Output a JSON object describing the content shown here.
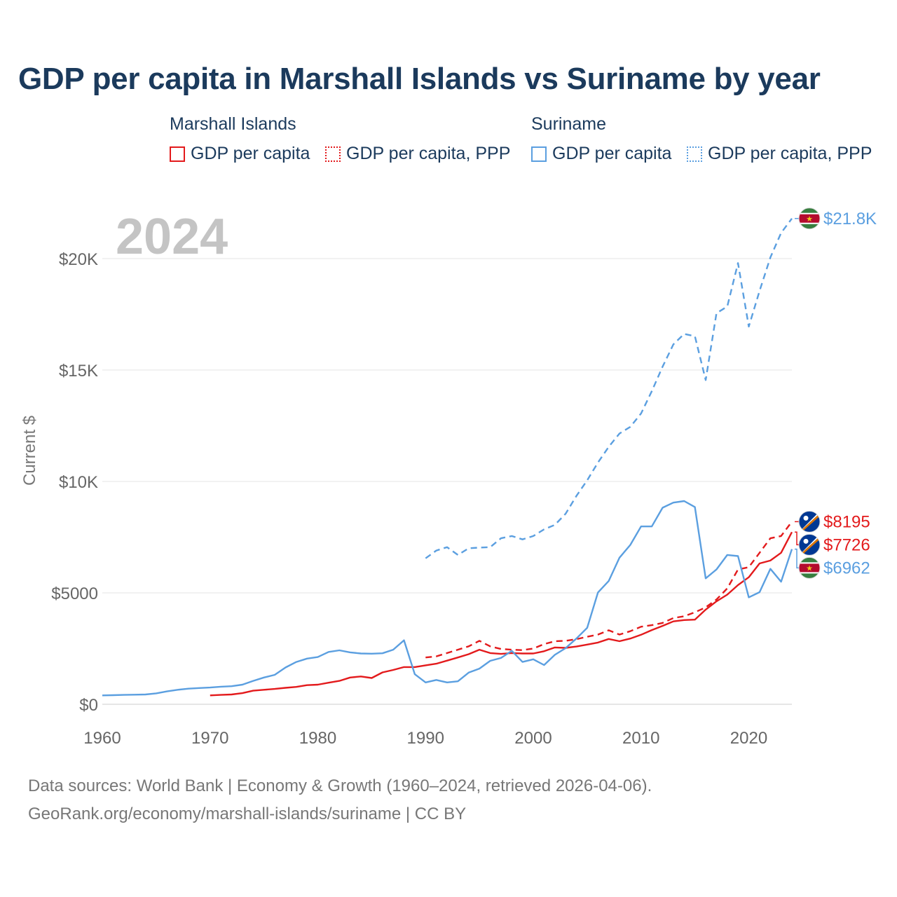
{
  "title": "GDP per capita in Marshall Islands vs Suriname by year",
  "legend": {
    "groups": [
      {
        "name": "Marshall Islands",
        "items": [
          "GDP per capita",
          "GDP per capita, PPP"
        ]
      },
      {
        "name": "Suriname",
        "items": [
          "GDP per capita",
          "GDP per capita, PPP"
        ]
      }
    ]
  },
  "colors": {
    "marshall": "#e31a1c",
    "suriname": "#5b9fe0",
    "title": "#1b3a5c",
    "grid": "#e6e6e6",
    "axis_text": "#666666",
    "year_watermark": "#c4c4c4"
  },
  "source_lines": [
    "Data sources: World Bank | Economy & Growth (1960–2024, retrieved 2026-04-06).",
    "GeoRank.org/economy/marshall-islands/suriname | CC BY"
  ],
  "chart_data": {
    "type": "line",
    "year_label": "2024",
    "ylabel": "Current $",
    "xlabel": "",
    "xlim": [
      1960,
      2024
    ],
    "ylim": [
      0,
      22000
    ],
    "x_ticks": [
      1960,
      1970,
      1980,
      1990,
      2000,
      2010,
      2020
    ],
    "y_ticks": [
      {
        "value": 0,
        "label": "$0"
      },
      {
        "value": 5000,
        "label": "$5000"
      },
      {
        "value": 10000,
        "label": "$10K"
      },
      {
        "value": 15000,
        "label": "$15K"
      },
      {
        "value": 20000,
        "label": "$20K"
      }
    ],
    "series": [
      {
        "name": "Marshall Islands GDP per capita",
        "country": "Marshall Islands",
        "style": "solid",
        "color": "#e31a1c",
        "end_label": "$7726",
        "flag": "marshall",
        "points": [
          [
            1970,
            400
          ],
          [
            1971,
            420
          ],
          [
            1972,
            440
          ],
          [
            1973,
            500
          ],
          [
            1974,
            610
          ],
          [
            1975,
            650
          ],
          [
            1976,
            690
          ],
          [
            1977,
            740
          ],
          [
            1978,
            780
          ],
          [
            1979,
            860
          ],
          [
            1980,
            880
          ],
          [
            1981,
            970
          ],
          [
            1982,
            1050
          ],
          [
            1983,
            1200
          ],
          [
            1984,
            1250
          ],
          [
            1985,
            1180
          ],
          [
            1986,
            1430
          ],
          [
            1987,
            1540
          ],
          [
            1988,
            1670
          ],
          [
            1989,
            1670
          ],
          [
            1990,
            1750
          ],
          [
            1991,
            1820
          ],
          [
            1992,
            1960
          ],
          [
            1993,
            2100
          ],
          [
            1994,
            2250
          ],
          [
            1995,
            2450
          ],
          [
            1996,
            2300
          ],
          [
            1997,
            2260
          ],
          [
            1998,
            2300
          ],
          [
            1999,
            2280
          ],
          [
            2000,
            2280
          ],
          [
            2001,
            2380
          ],
          [
            2002,
            2550
          ],
          [
            2003,
            2530
          ],
          [
            2004,
            2590
          ],
          [
            2005,
            2680
          ],
          [
            2006,
            2770
          ],
          [
            2007,
            2930
          ],
          [
            2008,
            2830
          ],
          [
            2009,
            2950
          ],
          [
            2010,
            3120
          ],
          [
            2011,
            3330
          ],
          [
            2012,
            3520
          ],
          [
            2013,
            3720
          ],
          [
            2014,
            3780
          ],
          [
            2015,
            3800
          ],
          [
            2016,
            4250
          ],
          [
            2017,
            4620
          ],
          [
            2018,
            4920
          ],
          [
            2019,
            5350
          ],
          [
            2020,
            5700
          ],
          [
            2021,
            6320
          ],
          [
            2022,
            6450
          ],
          [
            2023,
            6800
          ],
          [
            2024,
            7726
          ]
        ]
      },
      {
        "name": "Marshall Islands GDP per capita, PPP",
        "country": "Marshall Islands",
        "style": "dashed",
        "color": "#e31a1c",
        "end_label": "$8195",
        "flag": "marshall",
        "points": [
          [
            1990,
            2100
          ],
          [
            1991,
            2150
          ],
          [
            1992,
            2300
          ],
          [
            1993,
            2450
          ],
          [
            1994,
            2600
          ],
          [
            1995,
            2850
          ],
          [
            1996,
            2600
          ],
          [
            1997,
            2480
          ],
          [
            1998,
            2450
          ],
          [
            1999,
            2430
          ],
          [
            2000,
            2500
          ],
          [
            2001,
            2700
          ],
          [
            2002,
            2830
          ],
          [
            2003,
            2850
          ],
          [
            2004,
            2920
          ],
          [
            2005,
            3030
          ],
          [
            2006,
            3130
          ],
          [
            2007,
            3320
          ],
          [
            2008,
            3130
          ],
          [
            2009,
            3280
          ],
          [
            2010,
            3480
          ],
          [
            2011,
            3550
          ],
          [
            2012,
            3650
          ],
          [
            2013,
            3870
          ],
          [
            2014,
            3950
          ],
          [
            2015,
            4130
          ],
          [
            2016,
            4350
          ],
          [
            2017,
            4700
          ],
          [
            2018,
            5200
          ],
          [
            2019,
            6050
          ],
          [
            2020,
            6150
          ],
          [
            2021,
            6800
          ],
          [
            2022,
            7450
          ],
          [
            2023,
            7550
          ],
          [
            2024,
            8195
          ]
        ]
      },
      {
        "name": "Suriname GDP per capita",
        "country": "Suriname",
        "style": "solid",
        "color": "#5b9fe0",
        "end_label": "$6962",
        "flag": "suriname",
        "points": [
          [
            1960,
            400
          ],
          [
            1961,
            410
          ],
          [
            1962,
            420
          ],
          [
            1963,
            430
          ],
          [
            1964,
            440
          ],
          [
            1965,
            490
          ],
          [
            1966,
            580
          ],
          [
            1967,
            650
          ],
          [
            1968,
            700
          ],
          [
            1969,
            730
          ],
          [
            1970,
            750
          ],
          [
            1971,
            790
          ],
          [
            1972,
            810
          ],
          [
            1973,
            880
          ],
          [
            1974,
            1050
          ],
          [
            1975,
            1200
          ],
          [
            1976,
            1320
          ],
          [
            1977,
            1650
          ],
          [
            1978,
            1900
          ],
          [
            1979,
            2050
          ],
          [
            1980,
            2120
          ],
          [
            1981,
            2350
          ],
          [
            1982,
            2420
          ],
          [
            1983,
            2330
          ],
          [
            1984,
            2280
          ],
          [
            1985,
            2270
          ],
          [
            1986,
            2290
          ],
          [
            1987,
            2450
          ],
          [
            1988,
            2870
          ],
          [
            1989,
            1350
          ],
          [
            1990,
            980
          ],
          [
            1991,
            1090
          ],
          [
            1992,
            980
          ],
          [
            1993,
            1030
          ],
          [
            1994,
            1420
          ],
          [
            1995,
            1600
          ],
          [
            1996,
            1950
          ],
          [
            1997,
            2080
          ],
          [
            1998,
            2400
          ],
          [
            1999,
            1900
          ],
          [
            2000,
            2020
          ],
          [
            2001,
            1760
          ],
          [
            2002,
            2220
          ],
          [
            2003,
            2520
          ],
          [
            2004,
            2950
          ],
          [
            2005,
            3430
          ],
          [
            2006,
            5020
          ],
          [
            2007,
            5530
          ],
          [
            2008,
            6580
          ],
          [
            2009,
            7150
          ],
          [
            2010,
            7980
          ],
          [
            2011,
            7980
          ],
          [
            2012,
            8820
          ],
          [
            2013,
            9050
          ],
          [
            2014,
            9120
          ],
          [
            2015,
            8850
          ],
          [
            2016,
            5650
          ],
          [
            2017,
            6050
          ],
          [
            2018,
            6700
          ],
          [
            2019,
            6650
          ],
          [
            2020,
            4800
          ],
          [
            2021,
            5030
          ],
          [
            2022,
            6080
          ],
          [
            2023,
            5500
          ],
          [
            2024,
            6962
          ]
        ]
      },
      {
        "name": "Suriname GDP per capita, PPP",
        "country": "Suriname",
        "style": "dashed",
        "color": "#5b9fe0",
        "end_label": "$21.8K",
        "flag": "suriname",
        "points": [
          [
            1990,
            6550
          ],
          [
            1991,
            6900
          ],
          [
            1992,
            7050
          ],
          [
            1993,
            6700
          ],
          [
            1994,
            7000
          ],
          [
            1995,
            7030
          ],
          [
            1996,
            7050
          ],
          [
            1997,
            7450
          ],
          [
            1998,
            7550
          ],
          [
            1999,
            7400
          ],
          [
            2000,
            7550
          ],
          [
            2001,
            7850
          ],
          [
            2002,
            8050
          ],
          [
            2003,
            8550
          ],
          [
            2004,
            9350
          ],
          [
            2005,
            10050
          ],
          [
            2006,
            10850
          ],
          [
            2007,
            11550
          ],
          [
            2008,
            12150
          ],
          [
            2009,
            12450
          ],
          [
            2010,
            13050
          ],
          [
            2011,
            14050
          ],
          [
            2012,
            15150
          ],
          [
            2013,
            16150
          ],
          [
            2014,
            16620
          ],
          [
            2015,
            16520
          ],
          [
            2016,
            14550
          ],
          [
            2017,
            17550
          ],
          [
            2018,
            17850
          ],
          [
            2019,
            19800
          ],
          [
            2020,
            16950
          ],
          [
            2021,
            18550
          ],
          [
            2022,
            20050
          ],
          [
            2023,
            21150
          ],
          [
            2024,
            21800
          ]
        ]
      }
    ]
  }
}
